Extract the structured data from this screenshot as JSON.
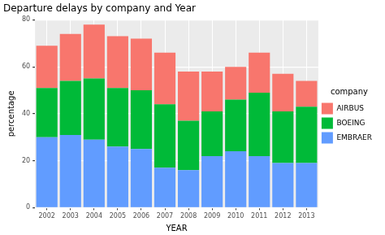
{
  "chart_data": {
    "type": "bar",
    "title": "Departure delays by company and Year",
    "x_label": "YEAR",
    "y_label": "percentage",
    "legend_title": "company",
    "legend": "right",
    "stacked": true,
    "grid": true,
    "categories": [
      "2002",
      "2003",
      "2004",
      "2005",
      "2006",
      "2007",
      "2008",
      "2009",
      "2010",
      "2011",
      "2012",
      "2013"
    ],
    "series": [
      {
        "name": "EMBRAER",
        "color": "#619CFF",
        "values": [
          30,
          31,
          29,
          26,
          25,
          17,
          16,
          22,
          24,
          22,
          19,
          19
        ]
      },
      {
        "name": "BOEING",
        "color": "#00BA38",
        "values": [
          21,
          23,
          26,
          25,
          25,
          27,
          21,
          19,
          22,
          27,
          22,
          24
        ]
      },
      {
        "name": "AIRBUS",
        "color": "#F8766D",
        "values": [
          18,
          20,
          23,
          22,
          22,
          22,
          21,
          17,
          14,
          17,
          16,
          11
        ]
      }
    ],
    "ylim": [
      0,
      80
    ],
    "yticks": [
      0,
      20,
      40,
      60,
      80
    ]
  }
}
